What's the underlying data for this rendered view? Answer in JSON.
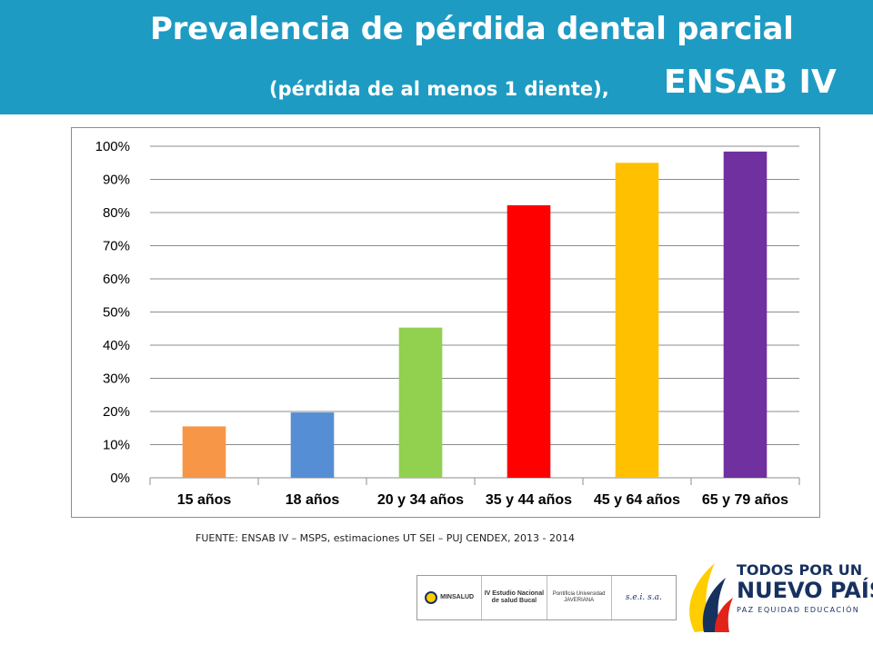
{
  "header": {
    "title_line1": "Prevalencia de pérdida dental parcial",
    "title_line2": "(pérdida de al menos 1 diente),",
    "title_line3": "ENSAB IV"
  },
  "colors": {
    "header_bg": "#1e9bc3",
    "bars": [
      "#f79646",
      "#558ed5",
      "#92d050",
      "#ff0000",
      "#ffc000",
      "#7030a0"
    ]
  },
  "chart_data": {
    "type": "bar",
    "categories": [
      "15 años",
      "18 años",
      "20 y 34 años",
      "35 y 44 años",
      "45 y 64 años",
      "65 y 79 años"
    ],
    "values": [
      15.5,
      19.7,
      45.3,
      82.2,
      95.0,
      98.4
    ],
    "yticks": [
      "0%",
      "10%",
      "20%",
      "30%",
      "40%",
      "50%",
      "60%",
      "70%",
      "80%",
      "90%",
      "100%"
    ],
    "ylim": [
      0,
      100
    ],
    "grid": true,
    "legend": "none"
  },
  "source": "FUENTE: ENSAB IV – MSPS, estimaciones UT SEI – PUJ CENDEX, 2013 - 2014",
  "logos": {
    "minsalud": "MINSALUD",
    "estudio": "IV Estudio Nacional de salud Bucal",
    "javeriana": "Pontificia Universidad JAVERIANA",
    "sei": "s.e.i. s.a."
  },
  "brand": {
    "line1": "TODOS POR UN",
    "line2": "NUEVO PAÍS",
    "line3": "PAZ  EQUIDAD  EDUCACIÓN"
  }
}
